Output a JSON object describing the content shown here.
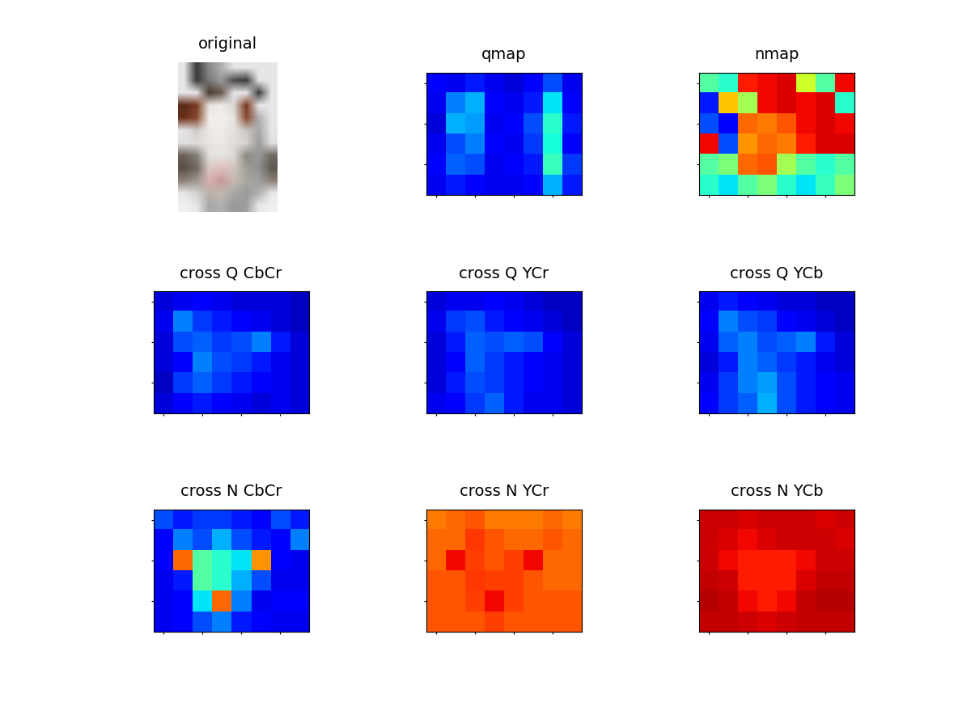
{
  "chart_data": [
    {
      "type": "image",
      "title": "original",
      "tick_labels": false,
      "cells": [
        [
          "#e6e6e8",
          "#3a3a3a",
          "#8a8a8a",
          "#b0b0b0",
          "#e6e6e8",
          "#e6e6e8",
          "#e6e6e8",
          "#e6e6e8"
        ],
        [
          "#e6e6e8",
          "#3a3a3a",
          "#7a7a7a",
          "#9a9a9a",
          "#4a4a4a",
          "#3a3a3a",
          "#e6e6e8",
          "#e6e6e8"
        ],
        [
          "#e6e6e8",
          "#e6e6e8",
          "#4a3a30",
          "#6a5a50",
          "#e6e6e8",
          "#e6e6e8",
          "#3a3a3a",
          "#e6e6e8"
        ],
        [
          "#5a2a18",
          "#7a3a20",
          "#e8e4e0",
          "#f0ece8",
          "#d8d4d0",
          "#7a3a20",
          "#e6e6e8",
          "#e6e6e8"
        ],
        [
          "#6a3018",
          "#8a4a30",
          "#f0ece8",
          "#f4f0ec",
          "#e8e4e0",
          "#8a4a30",
          "#b0b0b0",
          "#e6e6e8"
        ],
        [
          "#e6e6e8",
          "#d0ccc8",
          "#ece8e4",
          "#f0ece8",
          "#e4e0dc",
          "#c8c4c0",
          "#a8a8a8",
          "#e6e6e8"
        ],
        [
          "#e0e0e2",
          "#e0dcd8",
          "#e8e4e0",
          "#ece8e4",
          "#e0dcd8",
          "#d8d4d0",
          "#9a9a9a",
          "#e0e0e2"
        ],
        [
          "#6a6058",
          "#808078",
          "#e4e0dc",
          "#e8e4e0",
          "#dcd8d4",
          "#8a8a80",
          "#9a9a9a",
          "#706860"
        ],
        [
          "#5a5048",
          "#706860",
          "#d8c8c4",
          "#e0c0c0",
          "#d0c4c0",
          "#a0a098",
          "#909090",
          "#605850"
        ],
        [
          "#8a8078",
          "#a09890",
          "#d8b0b0",
          "#c89898",
          "#c8b8b4",
          "#a8a8a0",
          "#a0a0a0",
          "#8a8078"
        ],
        [
          "#e8e8ea",
          "#d0d0d0",
          "#b8b0a8",
          "#c0b8b0",
          "#a8a8a8",
          "#9a9a9a",
          "#b0b0b0",
          "#e8e8ea"
        ],
        [
          "#f0f0f2",
          "#e8e8ea",
          "#a8a8a8",
          "#b0b0b0",
          "#989898",
          "#a0a0a0",
          "#e8e8ea",
          "#f0f0f2"
        ]
      ]
    },
    {
      "type": "heatmap",
      "title": "qmap",
      "color": "jet",
      "clim": [
        0,
        1
      ],
      "tick_labels": false,
      "cells": [
        [
          0.12,
          0.1,
          0.15,
          0.1,
          0.08,
          0.12,
          0.2,
          0.1
        ],
        [
          0.1,
          0.25,
          0.3,
          0.12,
          0.1,
          0.15,
          0.35,
          0.12
        ],
        [
          0.08,
          0.3,
          0.28,
          0.1,
          0.12,
          0.2,
          0.4,
          0.15
        ],
        [
          0.1,
          0.2,
          0.25,
          0.12,
          0.1,
          0.18,
          0.38,
          0.12
        ],
        [
          0.12,
          0.22,
          0.2,
          0.1,
          0.12,
          0.15,
          0.42,
          0.18
        ],
        [
          0.1,
          0.15,
          0.12,
          0.1,
          0.1,
          0.12,
          0.3,
          0.15
        ]
      ]
    },
    {
      "type": "heatmap",
      "title": "nmap",
      "color": "jet",
      "clim": [
        0,
        1
      ],
      "tick_labels": false,
      "cells": [
        [
          0.45,
          0.4,
          0.88,
          0.9,
          0.92,
          0.6,
          0.45,
          0.9
        ],
        [
          0.15,
          0.7,
          0.55,
          0.9,
          0.92,
          0.9,
          0.92,
          0.4
        ],
        [
          0.2,
          0.12,
          0.8,
          0.78,
          0.82,
          0.9,
          0.92,
          0.9
        ],
        [
          0.9,
          0.2,
          0.75,
          0.8,
          0.78,
          0.88,
          0.92,
          0.92
        ],
        [
          0.45,
          0.5,
          0.8,
          0.82,
          0.55,
          0.45,
          0.4,
          0.45
        ],
        [
          0.4,
          0.35,
          0.45,
          0.5,
          0.4,
          0.35,
          0.42,
          0.5
        ]
      ]
    },
    {
      "type": "heatmap",
      "title": "cross Q CbCr",
      "color": "jet",
      "clim": [
        0,
        1
      ],
      "tick_labels": false,
      "cells": [
        [
          0.08,
          0.1,
          0.12,
          0.1,
          0.08,
          0.08,
          0.08,
          0.06
        ],
        [
          0.1,
          0.25,
          0.18,
          0.15,
          0.12,
          0.1,
          0.08,
          0.06
        ],
        [
          0.08,
          0.2,
          0.22,
          0.18,
          0.2,
          0.25,
          0.15,
          0.08
        ],
        [
          0.08,
          0.12,
          0.25,
          0.2,
          0.18,
          0.15,
          0.1,
          0.08
        ],
        [
          0.06,
          0.18,
          0.22,
          0.18,
          0.15,
          0.12,
          0.1,
          0.08
        ],
        [
          0.08,
          0.12,
          0.15,
          0.12,
          0.1,
          0.08,
          0.1,
          0.08
        ]
      ]
    },
    {
      "type": "heatmap",
      "title": "cross Q YCr",
      "color": "jet",
      "clim": [
        0,
        1
      ],
      "tick_labels": false,
      "cells": [
        [
          0.08,
          0.1,
          0.1,
          0.12,
          0.1,
          0.08,
          0.06,
          0.06
        ],
        [
          0.1,
          0.18,
          0.2,
          0.15,
          0.12,
          0.1,
          0.08,
          0.06
        ],
        [
          0.08,
          0.15,
          0.22,
          0.2,
          0.22,
          0.2,
          0.12,
          0.08
        ],
        [
          0.08,
          0.12,
          0.22,
          0.18,
          0.15,
          0.12,
          0.1,
          0.08
        ],
        [
          0.08,
          0.15,
          0.2,
          0.18,
          0.15,
          0.12,
          0.1,
          0.08
        ],
        [
          0.1,
          0.12,
          0.18,
          0.22,
          0.15,
          0.1,
          0.1,
          0.08
        ]
      ]
    },
    {
      "type": "heatmap",
      "title": "cross Q YCb",
      "color": "jet",
      "clim": [
        0,
        1
      ],
      "tick_labels": false,
      "cells": [
        [
          0.1,
          0.15,
          0.12,
          0.1,
          0.08,
          0.08,
          0.06,
          0.06
        ],
        [
          0.12,
          0.25,
          0.2,
          0.18,
          0.12,
          0.1,
          0.08,
          0.06
        ],
        [
          0.1,
          0.22,
          0.25,
          0.2,
          0.22,
          0.25,
          0.15,
          0.08
        ],
        [
          0.08,
          0.15,
          0.25,
          0.22,
          0.18,
          0.15,
          0.1,
          0.08
        ],
        [
          0.1,
          0.18,
          0.25,
          0.28,
          0.2,
          0.15,
          0.12,
          0.1
        ],
        [
          0.12,
          0.18,
          0.22,
          0.3,
          0.2,
          0.15,
          0.12,
          0.1
        ]
      ]
    },
    {
      "type": "heatmap",
      "title": "cross N CbCr",
      "color": "jet",
      "clim": [
        0,
        1
      ],
      "tick_labels": false,
      "cells": [
        [
          0.2,
          0.15,
          0.18,
          0.18,
          0.15,
          0.12,
          0.2,
          0.15
        ],
        [
          0.12,
          0.25,
          0.2,
          0.3,
          0.2,
          0.15,
          0.12,
          0.25
        ],
        [
          0.12,
          0.8,
          0.45,
          0.4,
          0.35,
          0.75,
          0.12,
          0.1
        ],
        [
          0.1,
          0.15,
          0.45,
          0.4,
          0.3,
          0.2,
          0.1,
          0.1
        ],
        [
          0.1,
          0.12,
          0.35,
          0.8,
          0.25,
          0.1,
          0.12,
          0.12
        ],
        [
          0.1,
          0.12,
          0.2,
          0.25,
          0.15,
          0.12,
          0.1,
          0.1
        ]
      ]
    },
    {
      "type": "heatmap",
      "title": "cross N YCr",
      "color": "jet",
      "clim": [
        0,
        1
      ],
      "tick_labels": false,
      "cells": [
        [
          0.78,
          0.8,
          0.82,
          0.78,
          0.78,
          0.78,
          0.8,
          0.78
        ],
        [
          0.8,
          0.8,
          0.85,
          0.82,
          0.8,
          0.8,
          0.82,
          0.8
        ],
        [
          0.8,
          0.9,
          0.84,
          0.82,
          0.84,
          0.9,
          0.8,
          0.8
        ],
        [
          0.82,
          0.82,
          0.85,
          0.84,
          0.84,
          0.82,
          0.8,
          0.8
        ],
        [
          0.82,
          0.82,
          0.84,
          0.9,
          0.84,
          0.82,
          0.82,
          0.82
        ],
        [
          0.82,
          0.82,
          0.82,
          0.84,
          0.82,
          0.82,
          0.82,
          0.82
        ]
      ]
    },
    {
      "type": "heatmap",
      "title": "cross N YCb",
      "color": "jet",
      "clim": [
        0,
        1
      ],
      "tick_labels": false,
      "cells": [
        [
          0.93,
          0.93,
          0.92,
          0.93,
          0.93,
          0.93,
          0.92,
          0.93
        ],
        [
          0.93,
          0.92,
          0.9,
          0.92,
          0.93,
          0.93,
          0.93,
          0.92
        ],
        [
          0.93,
          0.9,
          0.88,
          0.88,
          0.88,
          0.9,
          0.93,
          0.93
        ],
        [
          0.94,
          0.93,
          0.88,
          0.88,
          0.88,
          0.92,
          0.94,
          0.94
        ],
        [
          0.95,
          0.94,
          0.9,
          0.88,
          0.9,
          0.94,
          0.95,
          0.95
        ],
        [
          0.94,
          0.94,
          0.93,
          0.92,
          0.93,
          0.94,
          0.94,
          0.94
        ]
      ]
    }
  ]
}
